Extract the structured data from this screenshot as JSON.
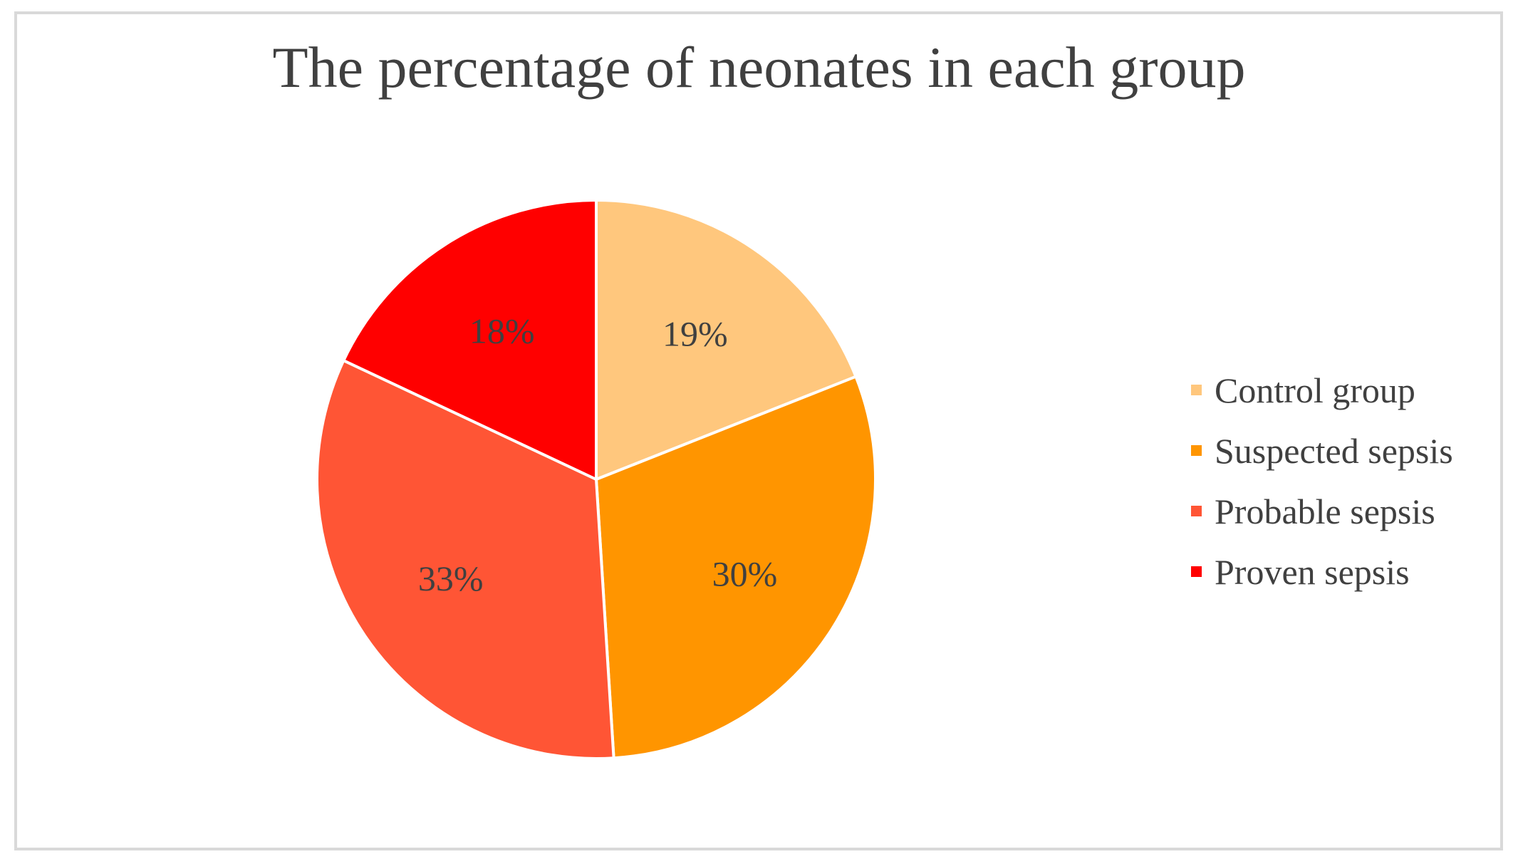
{
  "chart_data": {
    "type": "pie",
    "title": "The percentage of neonates in each group",
    "legend_position": "right",
    "slices": [
      {
        "name": "Control group",
        "value": 19,
        "label": "19%",
        "color": "#FFC77D"
      },
      {
        "name": "Suspected sepsis",
        "value": 30,
        "label": "30%",
        "color": "#FF9500"
      },
      {
        "name": "Probable sepsis",
        "value": 33,
        "label": "33%",
        "color": "#FF5535"
      },
      {
        "name": "Proven sepsis",
        "value": 18,
        "label": "18%",
        "color": "#FF0000"
      }
    ]
  }
}
